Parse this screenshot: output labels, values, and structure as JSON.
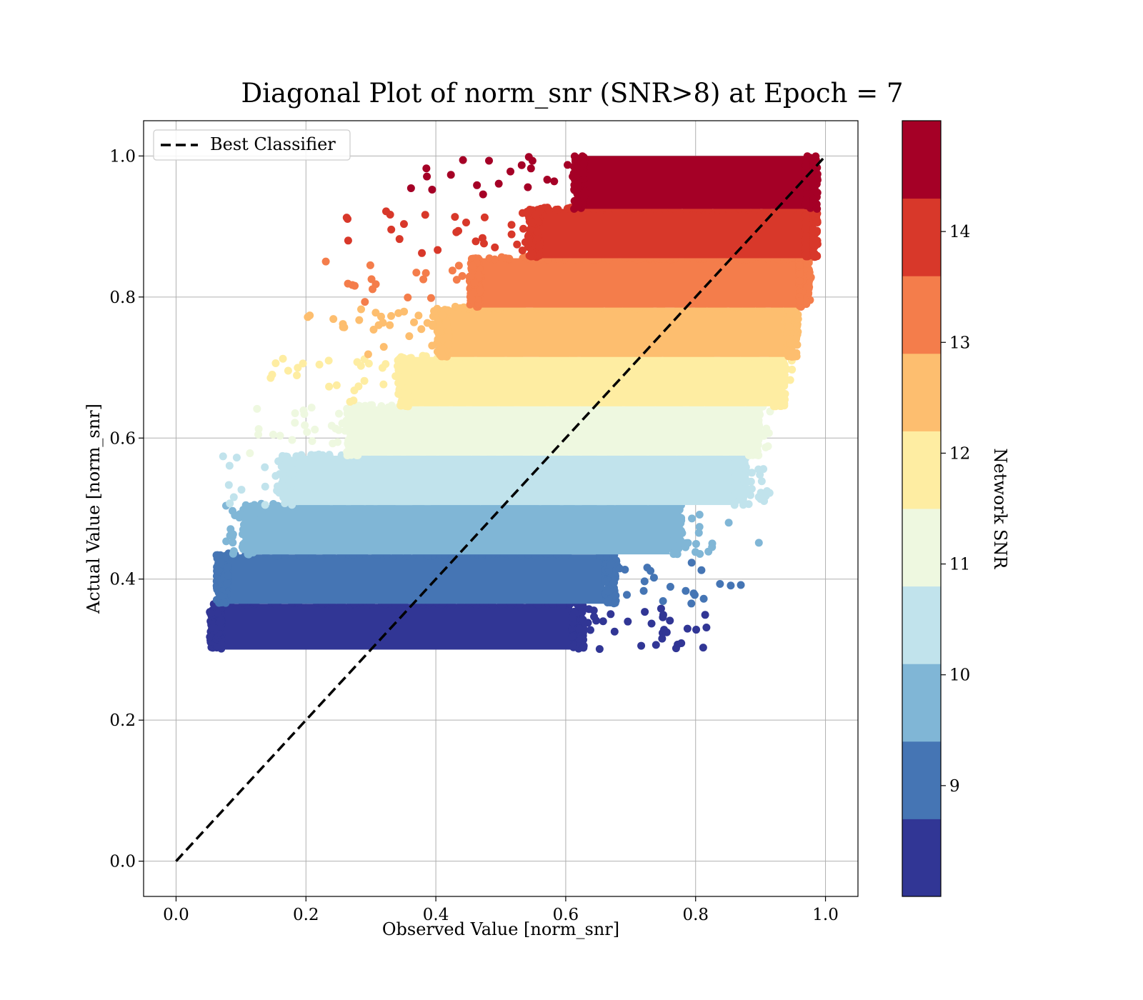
{
  "chart_data": {
    "type": "scatter",
    "title": "Diagonal Plot of norm_snr (SNR>8) at Epoch = 7",
    "xlabel": "Observed Value [norm_snr]",
    "ylabel": "Actual Value [norm_snr]",
    "xlim": [
      -0.05,
      1.05
    ],
    "ylim": [
      -0.05,
      1.05
    ],
    "xticks": [
      "0.0",
      "0.2",
      "0.4",
      "0.6",
      "0.8",
      "1.0"
    ],
    "yticks": [
      "0.0",
      "0.2",
      "0.4",
      "0.6",
      "0.8",
      "1.0"
    ],
    "grid": true,
    "legend": {
      "placement": "top-left",
      "entries": [
        "Best Classifier"
      ]
    },
    "reference_line": {
      "name": "Best Classifier",
      "style": "dashed",
      "color": "#000000",
      "x": [
        0,
        1
      ],
      "y": [
        0,
        1
      ]
    },
    "colorbar": {
      "label": "Network SNR",
      "range": [
        8,
        15
      ],
      "ticks": [
        "9",
        "10",
        "11",
        "12",
        "13",
        "14"
      ],
      "colors": [
        "#313695",
        "#4575b4",
        "#80b6d6",
        "#c1e3ec",
        "#eef8e0",
        "#feeda2",
        "#fdbe6f",
        "#f47d4b",
        "#d8382a",
        "#a50026"
      ]
    },
    "bands": [
      {
        "snr": 8.35,
        "y": [
          0.3,
          0.365
        ],
        "x_core": [
          0.07,
          0.61
        ],
        "x_scatter": [
          0.055,
          0.82
        ],
        "color": "#313695"
      },
      {
        "snr": 9.05,
        "y": [
          0.365,
          0.435
        ],
        "x_core": [
          0.08,
          0.66
        ],
        "x_scatter": [
          0.065,
          0.88
        ],
        "color": "#4575b4"
      },
      {
        "snr": 9.75,
        "y": [
          0.435,
          0.505
        ],
        "x_core": [
          0.12,
          0.76
        ],
        "x_scatter": [
          0.075,
          0.9
        ],
        "color": "#80b6d6"
      },
      {
        "snr": 10.45,
        "y": [
          0.505,
          0.575
        ],
        "x_core": [
          0.18,
          0.86
        ],
        "x_scatter": [
          0.06,
          0.92
        ],
        "color": "#c1e3ec"
      },
      {
        "snr": 11.15,
        "y": [
          0.575,
          0.645
        ],
        "x_core": [
          0.28,
          0.88
        ],
        "x_scatter": [
          0.09,
          0.92
        ],
        "color": "#eef8e0"
      },
      {
        "snr": 11.85,
        "y": [
          0.645,
          0.715
        ],
        "x_core": [
          0.36,
          0.92
        ],
        "x_scatter": [
          0.13,
          0.95
        ],
        "color": "#feeda2"
      },
      {
        "snr": 12.55,
        "y": [
          0.715,
          0.785
        ],
        "x_core": [
          0.42,
          0.94
        ],
        "x_scatter": [
          0.19,
          0.95
        ],
        "color": "#fdbe6f"
      },
      {
        "snr": 13.25,
        "y": [
          0.785,
          0.855
        ],
        "x_core": [
          0.47,
          0.96
        ],
        "x_scatter": [
          0.23,
          0.96
        ],
        "color": "#f47d4b"
      },
      {
        "snr": 13.95,
        "y": [
          0.855,
          0.925
        ],
        "x_core": [
          0.56,
          0.97
        ],
        "x_scatter": [
          0.26,
          0.97
        ],
        "color": "#d8382a"
      },
      {
        "snr": 14.65,
        "y": [
          0.925,
          1.0
        ],
        "x_core": [
          0.63,
          0.97
        ],
        "x_scatter": [
          0.35,
          0.97
        ],
        "color": "#a50026"
      }
    ]
  }
}
